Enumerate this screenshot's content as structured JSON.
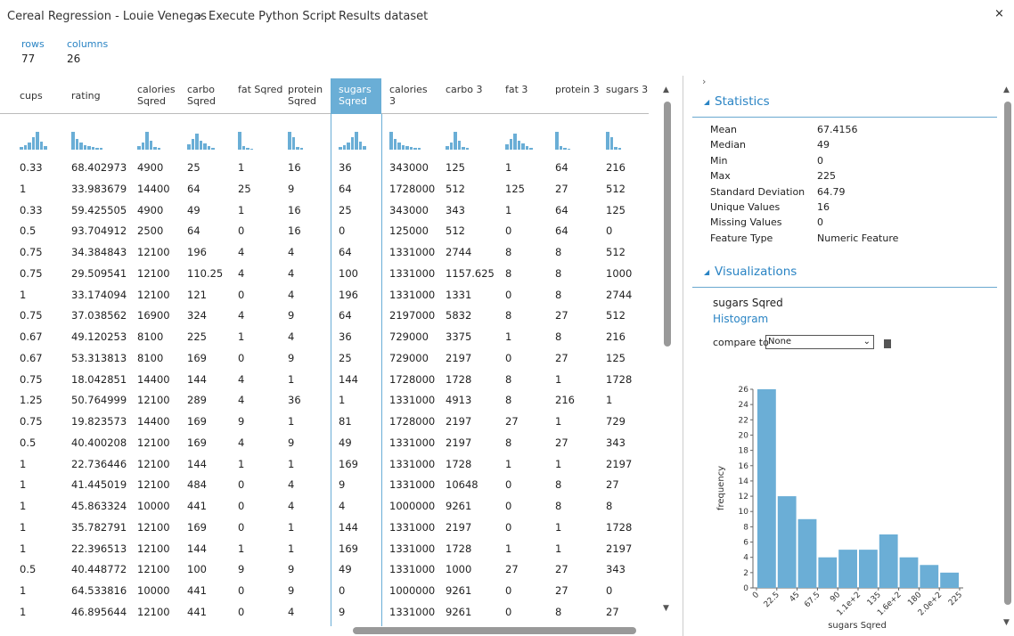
{
  "breadcrumb": [
    "Cereal Regression - Louie Venegas",
    "Execute Python Script",
    "Results dataset"
  ],
  "summary": {
    "rows_label": "rows",
    "rows": "77",
    "columns_label": "columns",
    "columns": "26"
  },
  "table": {
    "selected_column": 6,
    "headers": [
      "cups",
      "rating",
      "calories Sqred",
      "carbo Sqred",
      "fat Sqred",
      "protein Sqred",
      "sugars Sqred",
      "calories 3",
      "carbo 3",
      "fat 3",
      "protein 3",
      "sugars 3"
    ],
    "rows": [
      [
        "0.33",
        "68.402973",
        "4900",
        "25",
        "1",
        "16",
        "36",
        "343000",
        "125",
        "1",
        "64",
        "216"
      ],
      [
        "1",
        "33.983679",
        "14400",
        "64",
        "25",
        "9",
        "64",
        "1728000",
        "512",
        "125",
        "27",
        "512"
      ],
      [
        "0.33",
        "59.425505",
        "4900",
        "49",
        "1",
        "16",
        "25",
        "343000",
        "343",
        "1",
        "64",
        "125"
      ],
      [
        "0.5",
        "93.704912",
        "2500",
        "64",
        "0",
        "16",
        "0",
        "125000",
        "512",
        "0",
        "64",
        "0"
      ],
      [
        "0.75",
        "34.384843",
        "12100",
        "196",
        "4",
        "4",
        "64",
        "1331000",
        "2744",
        "8",
        "8",
        "512"
      ],
      [
        "0.75",
        "29.509541",
        "12100",
        "110.25",
        "4",
        "4",
        "100",
        "1331000",
        "1157.625",
        "8",
        "8",
        "1000"
      ],
      [
        "1",
        "33.174094",
        "12100",
        "121",
        "0",
        "4",
        "196",
        "1331000",
        "1331",
        "0",
        "8",
        "2744"
      ],
      [
        "0.75",
        "37.038562",
        "16900",
        "324",
        "4",
        "9",
        "64",
        "2197000",
        "5832",
        "8",
        "27",
        "512"
      ],
      [
        "0.67",
        "49.120253",
        "8100",
        "225",
        "1",
        "4",
        "36",
        "729000",
        "3375",
        "1",
        "8",
        "216"
      ],
      [
        "0.67",
        "53.313813",
        "8100",
        "169",
        "0",
        "9",
        "25",
        "729000",
        "2197",
        "0",
        "27",
        "125"
      ],
      [
        "0.75",
        "18.042851",
        "14400",
        "144",
        "4",
        "1",
        "144",
        "1728000",
        "1728",
        "8",
        "1",
        "1728"
      ],
      [
        "1.25",
        "50.764999",
        "12100",
        "289",
        "4",
        "36",
        "1",
        "1331000",
        "4913",
        "8",
        "216",
        "1"
      ],
      [
        "0.75",
        "19.823573",
        "14400",
        "169",
        "9",
        "1",
        "81",
        "1728000",
        "2197",
        "27",
        "1",
        "729"
      ],
      [
        "0.5",
        "40.400208",
        "12100",
        "169",
        "4",
        "9",
        "49",
        "1331000",
        "2197",
        "8",
        "27",
        "343"
      ],
      [
        "1",
        "22.736446",
        "12100",
        "144",
        "1",
        "1",
        "169",
        "1331000",
        "1728",
        "1",
        "1",
        "2197"
      ],
      [
        "1",
        "41.445019",
        "12100",
        "484",
        "0",
        "4",
        "9",
        "1331000",
        "10648",
        "0",
        "8",
        "27"
      ],
      [
        "1",
        "45.863324",
        "10000",
        "441",
        "0",
        "4",
        "4",
        "1000000",
        "9261",
        "0",
        "8",
        "8"
      ],
      [
        "1",
        "35.782791",
        "12100",
        "169",
        "0",
        "1",
        "144",
        "1331000",
        "2197",
        "0",
        "1",
        "1728"
      ],
      [
        "1",
        "22.396513",
        "12100",
        "144",
        "1",
        "1",
        "169",
        "1331000",
        "1728",
        "1",
        "1",
        "2197"
      ],
      [
        "0.5",
        "40.448772",
        "12100",
        "100",
        "9",
        "9",
        "49",
        "1331000",
        "1000",
        "27",
        "27",
        "343"
      ],
      [
        "1",
        "64.533816",
        "10000",
        "441",
        "0",
        "9",
        "0",
        "1000000",
        "9261",
        "0",
        "27",
        "0"
      ],
      [
        "1",
        "46.895644",
        "12100",
        "441",
        "0",
        "4",
        "9",
        "1331000",
        "9261",
        "0",
        "8",
        "27"
      ]
    ]
  },
  "statistics": {
    "title": "Statistics",
    "items": [
      [
        "Mean",
        "67.4156"
      ],
      [
        "Median",
        "49"
      ],
      [
        "Min",
        "0"
      ],
      [
        "Max",
        "225"
      ],
      [
        "Standard Deviation",
        "64.79"
      ],
      [
        "Unique Values",
        "16"
      ],
      [
        "Missing Values",
        "0"
      ],
      [
        "Feature Type",
        "Numeric Feature"
      ]
    ]
  },
  "visualizations": {
    "title": "Visualizations",
    "column": "sugars Sqred",
    "chart_kind": "Histogram",
    "compare_label": "compare to",
    "compare_value": "None"
  },
  "chart_data": {
    "type": "histogram",
    "color": "#6baed6",
    "xlabel": "sugars Sqred",
    "ylabel": "frequency",
    "bins": [
      0,
      22.5,
      45,
      67.5,
      90,
      112.5,
      135,
      157.5,
      180,
      202.5,
      225
    ],
    "counts": [
      26,
      12,
      9,
      4,
      5,
      5,
      7,
      4,
      3,
      2
    ],
    "xlim": [
      0,
      225
    ],
    "ylim": [
      0,
      26
    ],
    "xticks": [
      0,
      22.5,
      45,
      67.5,
      90,
      {
        "value": 112.5,
        "label": "1.1e+2"
      },
      135,
      {
        "value": 157.5,
        "label": "1.6e+2"
      },
      180,
      {
        "value": 202.5,
        "label": "2.0e+2"
      },
      225
    ],
    "yticks": [
      0,
      2,
      4,
      6,
      8,
      10,
      12,
      14,
      16,
      18,
      20,
      22,
      24,
      26
    ]
  }
}
